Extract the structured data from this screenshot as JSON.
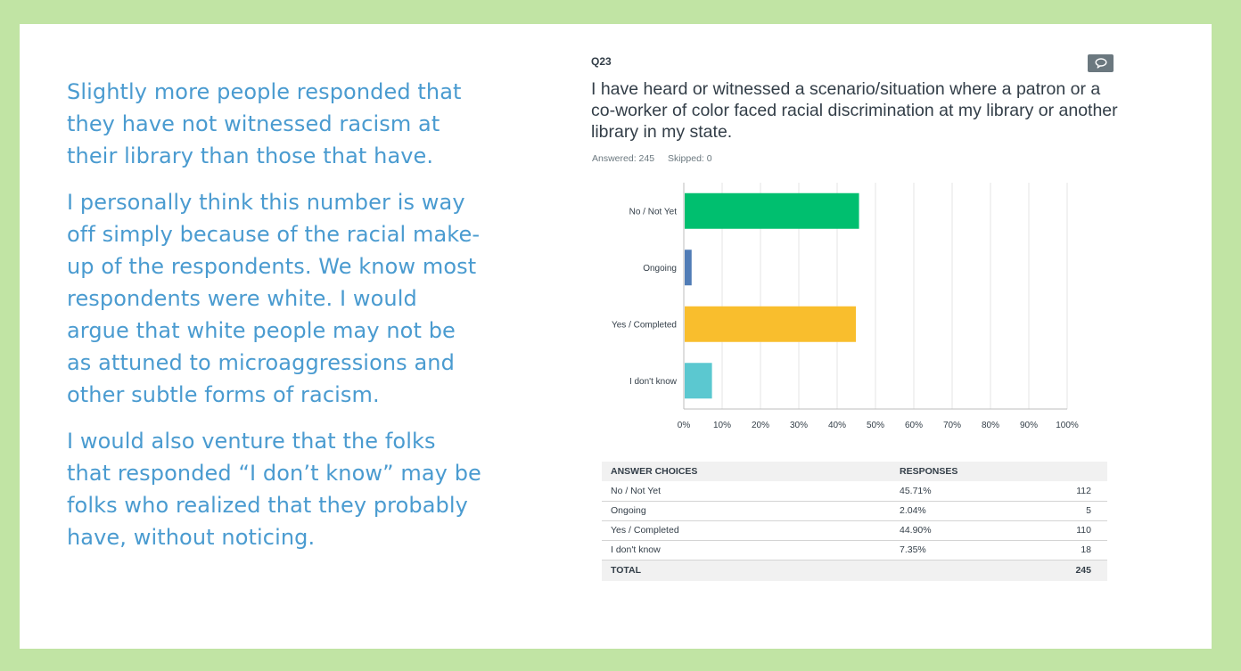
{
  "left_paragraphs": [
    "Slightly more people responded that they have not witnessed racism at their library than those that have.",
    "I personally think this number is way off simply because of the racial make-up of the respondents. We know most respondents were white. I would argue that white people may not be as attuned to microaggressions and other subtle forms of racism.",
    "I would also venture that the folks that responded “I don’t know” may be folks who realized that they probably have, without noticing."
  ],
  "question": {
    "number": "Q23",
    "text": "I have heard or witnessed a scenario/situation where a patron or a co-worker of color faced racial discrimination at my library or another library in my state.",
    "answered": "Answered: 245",
    "skipped": "Skipped: 0",
    "comment_icon": "speech-bubble-icon"
  },
  "chart_data": {
    "type": "bar",
    "orientation": "horizontal",
    "categories": [
      "No / Not Yet",
      "Ongoing",
      "Yes / Completed",
      "I don't know"
    ],
    "values": [
      45.71,
      2.04,
      44.9,
      7.35
    ],
    "colors": [
      "#00bf6f",
      "#507cb6",
      "#f9be2d",
      "#5bc8d0"
    ],
    "xlim": [
      0,
      100
    ],
    "xticks": [
      "0%",
      "10%",
      "20%",
      "30%",
      "40%",
      "50%",
      "60%",
      "70%",
      "80%",
      "90%",
      "100%"
    ],
    "grid": true
  },
  "table": {
    "headers": [
      "ANSWER CHOICES",
      "RESPONSES"
    ],
    "rows": [
      {
        "choice": "No / Not Yet",
        "percent": "45.71%",
        "count": "112"
      },
      {
        "choice": "Ongoing",
        "percent": "2.04%",
        "count": "5"
      },
      {
        "choice": "Yes / Completed",
        "percent": "44.90%",
        "count": "110"
      },
      {
        "choice": "I don't know",
        "percent": "7.35%",
        "count": "18"
      }
    ],
    "total_label": "TOTAL",
    "total_count": "245"
  }
}
